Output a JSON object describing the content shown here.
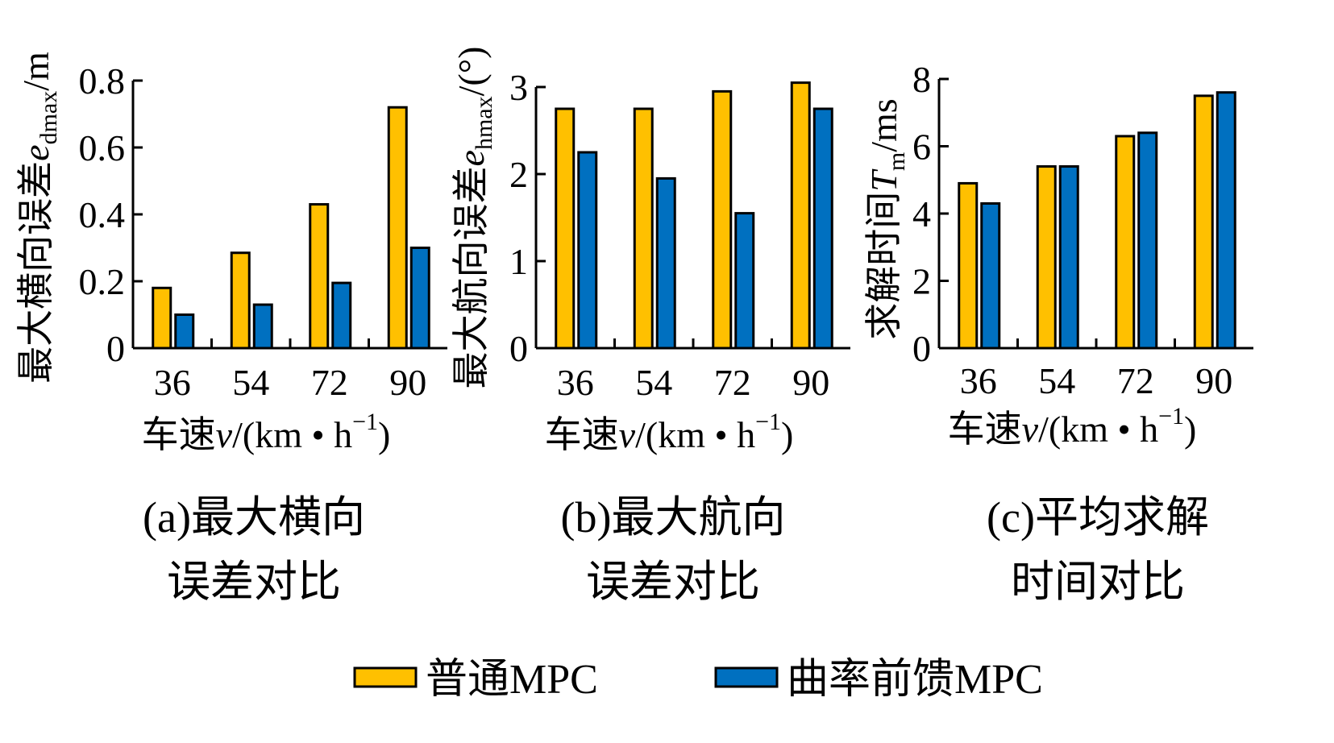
{
  "chart_data": [
    {
      "type": "bar",
      "panel": "a",
      "caption_line1": "(a)最大横向",
      "caption_line2": "误差对比",
      "categories": [
        "36",
        "54",
        "72",
        "90"
      ],
      "xlabel": {
        "prefix": "车速",
        "var": "v",
        "unit": "/(km • h",
        "sup": "−1",
        "close": ")"
      },
      "ylabel": {
        "prefix": "最大横向误差",
        "var": "e",
        "sub": "dmax",
        "unit": "/m"
      },
      "ylim": [
        0,
        0.8
      ],
      "yticks": [
        "0",
        "0.2",
        "0.4",
        "0.6",
        "0.8"
      ],
      "ytick_values": [
        0,
        0.2,
        0.4,
        0.6,
        0.8
      ],
      "series": [
        {
          "name": "普通MPC",
          "values": [
            0.18,
            0.285,
            0.43,
            0.72
          ]
        },
        {
          "name": "曲率前馈MPC",
          "values": [
            0.1,
            0.13,
            0.195,
            0.3
          ]
        }
      ]
    },
    {
      "type": "bar",
      "panel": "b",
      "caption_line1": "(b)最大航向",
      "caption_line2": "误差对比",
      "categories": [
        "36",
        "54",
        "72",
        "90"
      ],
      "xlabel": {
        "prefix": "车速",
        "var": "v",
        "unit": "/(km • h",
        "sup": "−1",
        "close": ")"
      },
      "ylabel": {
        "prefix": "最大航向误差",
        "var": "e",
        "sub": "hmax",
        "unit": "/(°)"
      },
      "ylim": [
        0,
        3
      ],
      "yticks": [
        "0",
        "1",
        "2",
        "3"
      ],
      "ytick_values": [
        0,
        1,
        2,
        3
      ],
      "series": [
        {
          "name": "普通MPC",
          "values": [
            2.75,
            2.75,
            2.95,
            3.05
          ]
        },
        {
          "name": "曲率前馈MPC",
          "values": [
            2.25,
            1.95,
            1.55,
            2.75
          ]
        }
      ]
    },
    {
      "type": "bar",
      "panel": "c",
      "caption_line1": "(c)平均求解",
      "caption_line2": "时间对比",
      "categories": [
        "36",
        "54",
        "72",
        "90"
      ],
      "xlabel": {
        "prefix": "车速",
        "var": "v",
        "unit": "/(km • h",
        "sup": "−1",
        "close": ")"
      },
      "ylabel": {
        "prefix": "求解时间",
        "var": "T",
        "sub": "m",
        "unit": "/ms"
      },
      "ylim": [
        0,
        8
      ],
      "yticks": [
        "0",
        "2",
        "4",
        "6",
        "8"
      ],
      "ytick_values": [
        0,
        2,
        4,
        6,
        8
      ],
      "series": [
        {
          "name": "普通MPC",
          "values": [
            4.9,
            5.4,
            6.3,
            7.5
          ]
        },
        {
          "name": "曲率前馈MPC",
          "values": [
            4.3,
            5.4,
            6.4,
            7.6
          ]
        }
      ]
    }
  ],
  "legend": [
    {
      "name": "普通MPC",
      "color": "#FFC000"
    },
    {
      "name": "曲率前馈MPC",
      "color": "#0070C0"
    }
  ],
  "colors": {
    "series1": "#FFC000",
    "series2": "#0070C0",
    "stroke": "#000000"
  }
}
